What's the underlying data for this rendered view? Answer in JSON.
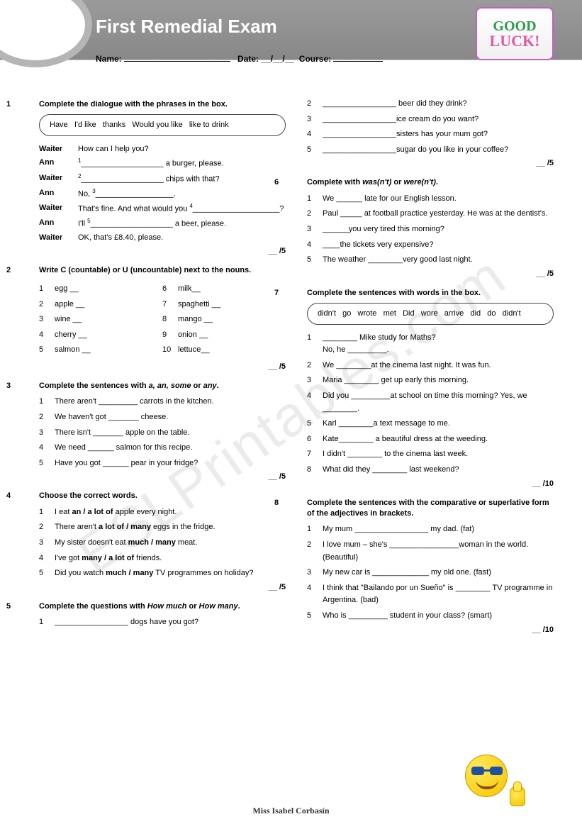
{
  "header": {
    "title": "First Remedial Exam",
    "name_label": "Name:",
    "date_label": "Date:",
    "course_label": "Course:",
    "goodluck_top": "GOOD",
    "goodluck_bot": "LUCK!"
  },
  "q1": {
    "num": "1",
    "instruction": "Complete the dialogue with the phrases in the box.",
    "box": "Have   I'd like   thanks   Would you like   like to drink",
    "d": [
      {
        "spk": "Waiter",
        "txt": "How can I help you?"
      },
      {
        "spk": "Ann",
        "txt": "<sup>1</sup>___________________ a burger, please."
      },
      {
        "spk": "Waiter",
        "txt": "<sup>2</sup>___________________ chips with that?"
      },
      {
        "spk": "Ann",
        "txt": "No, <sup>3</sup>__________________."
      },
      {
        "spk": "Waiter",
        "txt": "That's fine. And what would you <sup>4</sup>____________________?"
      },
      {
        "spk": "Ann",
        "txt": "I'll <sup>5</sup>___________________ a beer, please."
      },
      {
        "spk": "Waiter",
        "txt": "OK, that's £8.40, please."
      }
    ],
    "score": "__ /5"
  },
  "q2": {
    "num": "2",
    "instruction": "Write C (countable) or U (uncountable) next to the nouns.",
    "left": [
      {
        "n": "1",
        "t": "egg __"
      },
      {
        "n": "2",
        "t": "apple __"
      },
      {
        "n": "3",
        "t": "wine __"
      },
      {
        "n": "4",
        "t": "cherry __"
      },
      {
        "n": "5",
        "t": "salmon __"
      }
    ],
    "right": [
      {
        "n": "6",
        "t": "milk__"
      },
      {
        "n": "7",
        "t": "spaghetti __"
      },
      {
        "n": "8",
        "t": "mango __"
      },
      {
        "n": "9",
        "t": "onion __"
      },
      {
        "n": "10",
        "t": "lettuce__"
      }
    ],
    "score": "__ /5"
  },
  "q3": {
    "num": "3",
    "instruction": "Complete the sentences with a, an, some or any.",
    "items": [
      {
        "n": "1",
        "t": "There aren't _________ carrots in the kitchen."
      },
      {
        "n": "2",
        "t": "We haven't got _______ cheese."
      },
      {
        "n": "3",
        "t": "There isn't _______ apple on the table."
      },
      {
        "n": "4",
        "t": "We need ______ salmon for this recipe."
      },
      {
        "n": "5",
        "t": "Have you got ______ pear in your fridge?"
      }
    ],
    "score": "__ /5"
  },
  "q4": {
    "num": "4",
    "instruction": "Choose the correct words.",
    "items": [
      {
        "n": "1",
        "t": "I eat <b>an / a lot of</b> apple every night."
      },
      {
        "n": "2",
        "t": "There aren't <b>a lot of / many</b> eggs in the fridge."
      },
      {
        "n": "3",
        "t": "My sister doesn't eat <b>much / many</b> meat."
      },
      {
        "n": "4",
        "t": "I've got <b>many / a lot of</b> friends."
      },
      {
        "n": "5",
        "t": "Did you watch <b>much / many</b> TV programmes on holiday?"
      }
    ],
    "score": "__ /5"
  },
  "q5": {
    "num": "5",
    "instruction": "Complete the questions with How much or How many.",
    "items_left": [
      {
        "n": "1",
        "t": "_________________ dogs have you got?"
      }
    ],
    "items_right": [
      {
        "n": "2",
        "t": "_________________ beer did they drink?"
      },
      {
        "n": "3",
        "t": "_________________ice cream do you want?"
      },
      {
        "n": "4",
        "t": "_________________sisters has your mum got?"
      },
      {
        "n": "5",
        "t": "_________________sugar do you like in your coffee?"
      }
    ],
    "score": "__ /5"
  },
  "q6": {
    "num": "6",
    "instruction": "Complete with was(n't) or were(n't).",
    "items": [
      {
        "n": "1",
        "t": "We ______ late for our English lesson."
      },
      {
        "n": "2",
        "t": "Paul _____ at football practice yesterday. He was at the dentist's."
      },
      {
        "n": "3",
        "t": "______you very tired this morning?"
      },
      {
        "n": "4",
        "t": "____the tickets very expensive?"
      },
      {
        "n": "5",
        "t": "The weather ________very good last night."
      }
    ],
    "score": "__ /5"
  },
  "q7": {
    "num": "7",
    "instruction": "Complete the sentences with words in the box.",
    "box": "didn't   go   wrote   met   Did   wore   arrive   did   do   didn't",
    "items": [
      {
        "n": "1",
        "t": "________ Mike study for Maths?<br>No, he _________."
      },
      {
        "n": "2",
        "t": "We ________at the cinema last night. It was fun."
      },
      {
        "n": "3",
        "t": "Maria ________ get up early this morning."
      },
      {
        "n": "4",
        "t": "Did you _________at school on time this morning? Yes, we ________."
      },
      {
        "n": "5",
        "t": "Karl ________a text message to me."
      },
      {
        "n": "6",
        "t": "Kate________ a beautiful dress at the weeding."
      },
      {
        "n": "7",
        "t": "I didn't ________ to the cinema last week."
      },
      {
        "n": "8",
        "t": "What did they ________ last weekend?"
      }
    ],
    "score": "__ /10"
  },
  "q8": {
    "num": "8",
    "instruction": "Complete the sentences with the comparative or superlative form of the adjectives in brackets.",
    "items": [
      {
        "n": "1",
        "t": "My mum _________________ my dad. (fat)"
      },
      {
        "n": "2",
        "t": "I love mum – she's ________________woman in the world. (Beautiful)"
      },
      {
        "n": "3",
        "t": "My new car is _____________ my old one. (fast)"
      },
      {
        "n": "4",
        "t": "I think that \"Bailando por un Sueño\" is ________ TV programme in Argentina.  (bad)"
      },
      {
        "n": "5",
        "t": "Who is _________ student in your class? (smart)"
      }
    ],
    "score": "__ /10"
  },
  "footer": {
    "author": "Miss Isabel Corbasín"
  },
  "watermark": "ESLPrintables.com"
}
